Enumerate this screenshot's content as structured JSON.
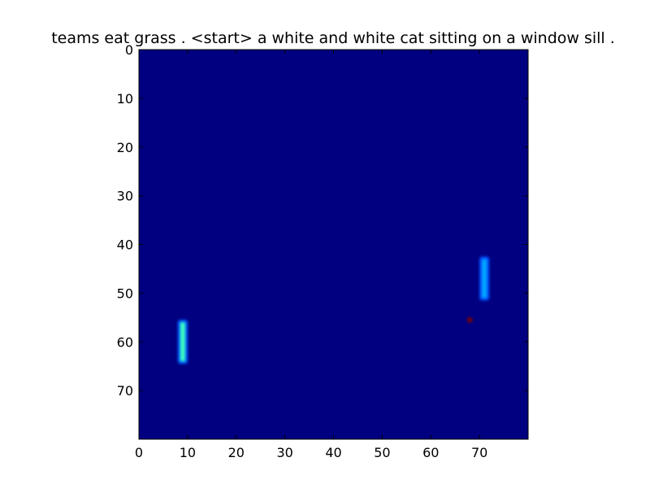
{
  "chart_data": {
    "type": "heatmap",
    "title": "teams eat grass . <start> a white and white cat sitting on a window sill .",
    "xlabel": "",
    "ylabel": "",
    "grid_size": [
      80,
      80
    ],
    "xlim": [
      0,
      80
    ],
    "ylim": [
      80,
      0
    ],
    "x_ticks": [
      0,
      10,
      20,
      30,
      40,
      50,
      60,
      70
    ],
    "y_ticks": [
      0,
      10,
      20,
      30,
      40,
      50,
      60,
      70
    ],
    "colormap": "jet",
    "background_value": 0.0,
    "background_color": "#000080",
    "highlights": [
      {
        "x": 9,
        "y_start": 56,
        "y_end": 64,
        "value": 0.45,
        "color": "#3dffc0",
        "halo_color": "#0060ff"
      },
      {
        "x": 71,
        "y_start": 43,
        "y_end": 51,
        "value": 0.3,
        "color": "#00a8ff",
        "halo_color": "#0050ff"
      },
      {
        "x": 68,
        "y_start": 55,
        "y_end": 56,
        "value": 1.0,
        "color": "#800000"
      }
    ],
    "legend": "none",
    "grid": false
  }
}
